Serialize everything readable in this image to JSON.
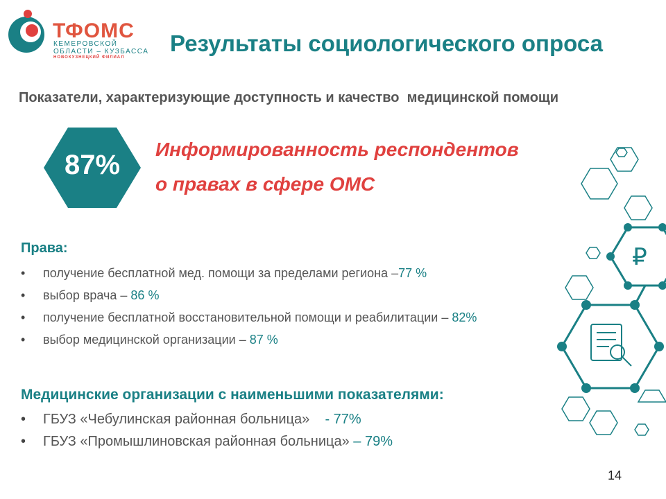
{
  "logo": {
    "name": "ТФОМС",
    "line1": "КЕМЕРОВСКОЙ",
    "line2": "ОБЛАСТИ – КУЗБАССА",
    "line3": "НОВОКУЗНЕЦКИЙ ФИЛИАЛ"
  },
  "title": "Результаты социологического опроса",
  "subtitle": "Показатели, характеризующие доступность и качество  медицинской помощи",
  "highlight": {
    "value": "87%",
    "lines": [
      "Информированность респондентов",
      "о правах в сфере ОМС"
    ]
  },
  "rights": {
    "heading": "Права:",
    "items": [
      {
        "text": "получение бесплатной мед. помощи за пределами региона –",
        "value": "77 %"
      },
      {
        "text": "выбор врача – ",
        "value": "86 %"
      },
      {
        "text": "получение бесплатной восстановительной помощи и реабилитации – ",
        "value": "82%"
      },
      {
        "text": "выбор медицинской организации – ",
        "value": "87 %"
      }
    ]
  },
  "organizations": {
    "heading": "Медицинские организации с наименьшими показателями:",
    "items": [
      {
        "text": "ГБУЗ «Чебулинская районная больница»    ",
        "value": "- 77%"
      },
      {
        "text": "ГБУЗ «Промышлиновская районная больница» ",
        "value": "– 79%"
      }
    ]
  },
  "page_number": "14"
}
